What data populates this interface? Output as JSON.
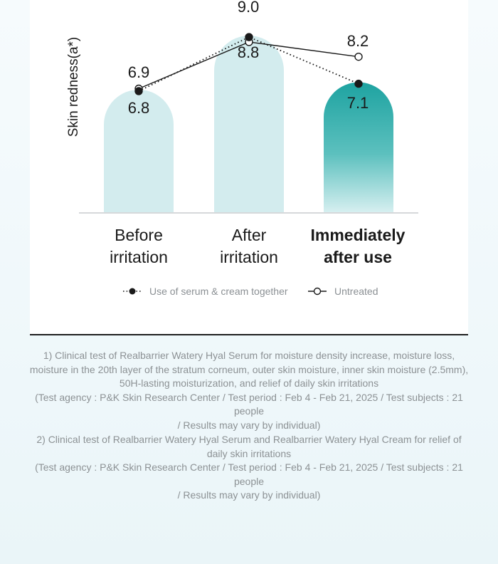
{
  "chart_data": {
    "type": "bar+line",
    "ylabel": "Skin redness(a*)",
    "categories": [
      {
        "line1": "Before",
        "line2": "irritation",
        "bold": false
      },
      {
        "line1": "After",
        "line2": "irritation",
        "bold": false
      },
      {
        "line1": "Immediately",
        "line2": "after use",
        "bold": true
      }
    ],
    "bars": [
      6.8,
      9.0,
      7.1
    ],
    "series": [
      {
        "name": "Use of serum & cream together",
        "marker": "filled",
        "style": "dotted",
        "values": [
          6.8,
          9.0,
          7.1
        ],
        "labels": [
          "6.8",
          "9.0",
          "7.1"
        ]
      },
      {
        "name": "Untreated",
        "marker": "open",
        "style": "solid",
        "values": [
          6.9,
          8.8,
          8.2
        ],
        "labels": [
          "6.9",
          "8.8",
          "8.2"
        ]
      }
    ],
    "ylim": [
      0,
      9.6
    ],
    "grid": false,
    "legend_position": "bottom",
    "colors": {
      "bar_light": "#d3ecee",
      "bar_highlight_top": "#1ea3a1",
      "bar_highlight_bottom": "#d6eff0",
      "line": "#1a1a1a",
      "axis": "#c8cccd"
    }
  },
  "footnotes": {
    "note1": {
      "lines": [
        "1) Clinical test of Realbarrier Watery Hyal Serum for moisture density increase, moisture loss,",
        "moisture in the 20th layer of the stratum corneum, outer skin moisture, inner skin moisture (2.5mm),",
        "50H-lasting moisturization, and relief of daily skin irritations",
        "(Test agency : P&K Skin Research Center / Test period : Feb 4 - Feb 21, 2025 / Test subjects : 21 people",
        "/ Results may vary by individual)"
      ]
    },
    "note2": {
      "lines": [
        "2) Clinical test of Realbarrier Watery Hyal Serum and Realbarrier Watery Hyal Cream for relief of",
        "daily skin irritations",
        "(Test agency : P&K Skin Research Center / Test period : Feb 4 - Feb 21, 2025 / Test subjects : 21 people",
        "/ Results may vary by individual)"
      ]
    }
  }
}
